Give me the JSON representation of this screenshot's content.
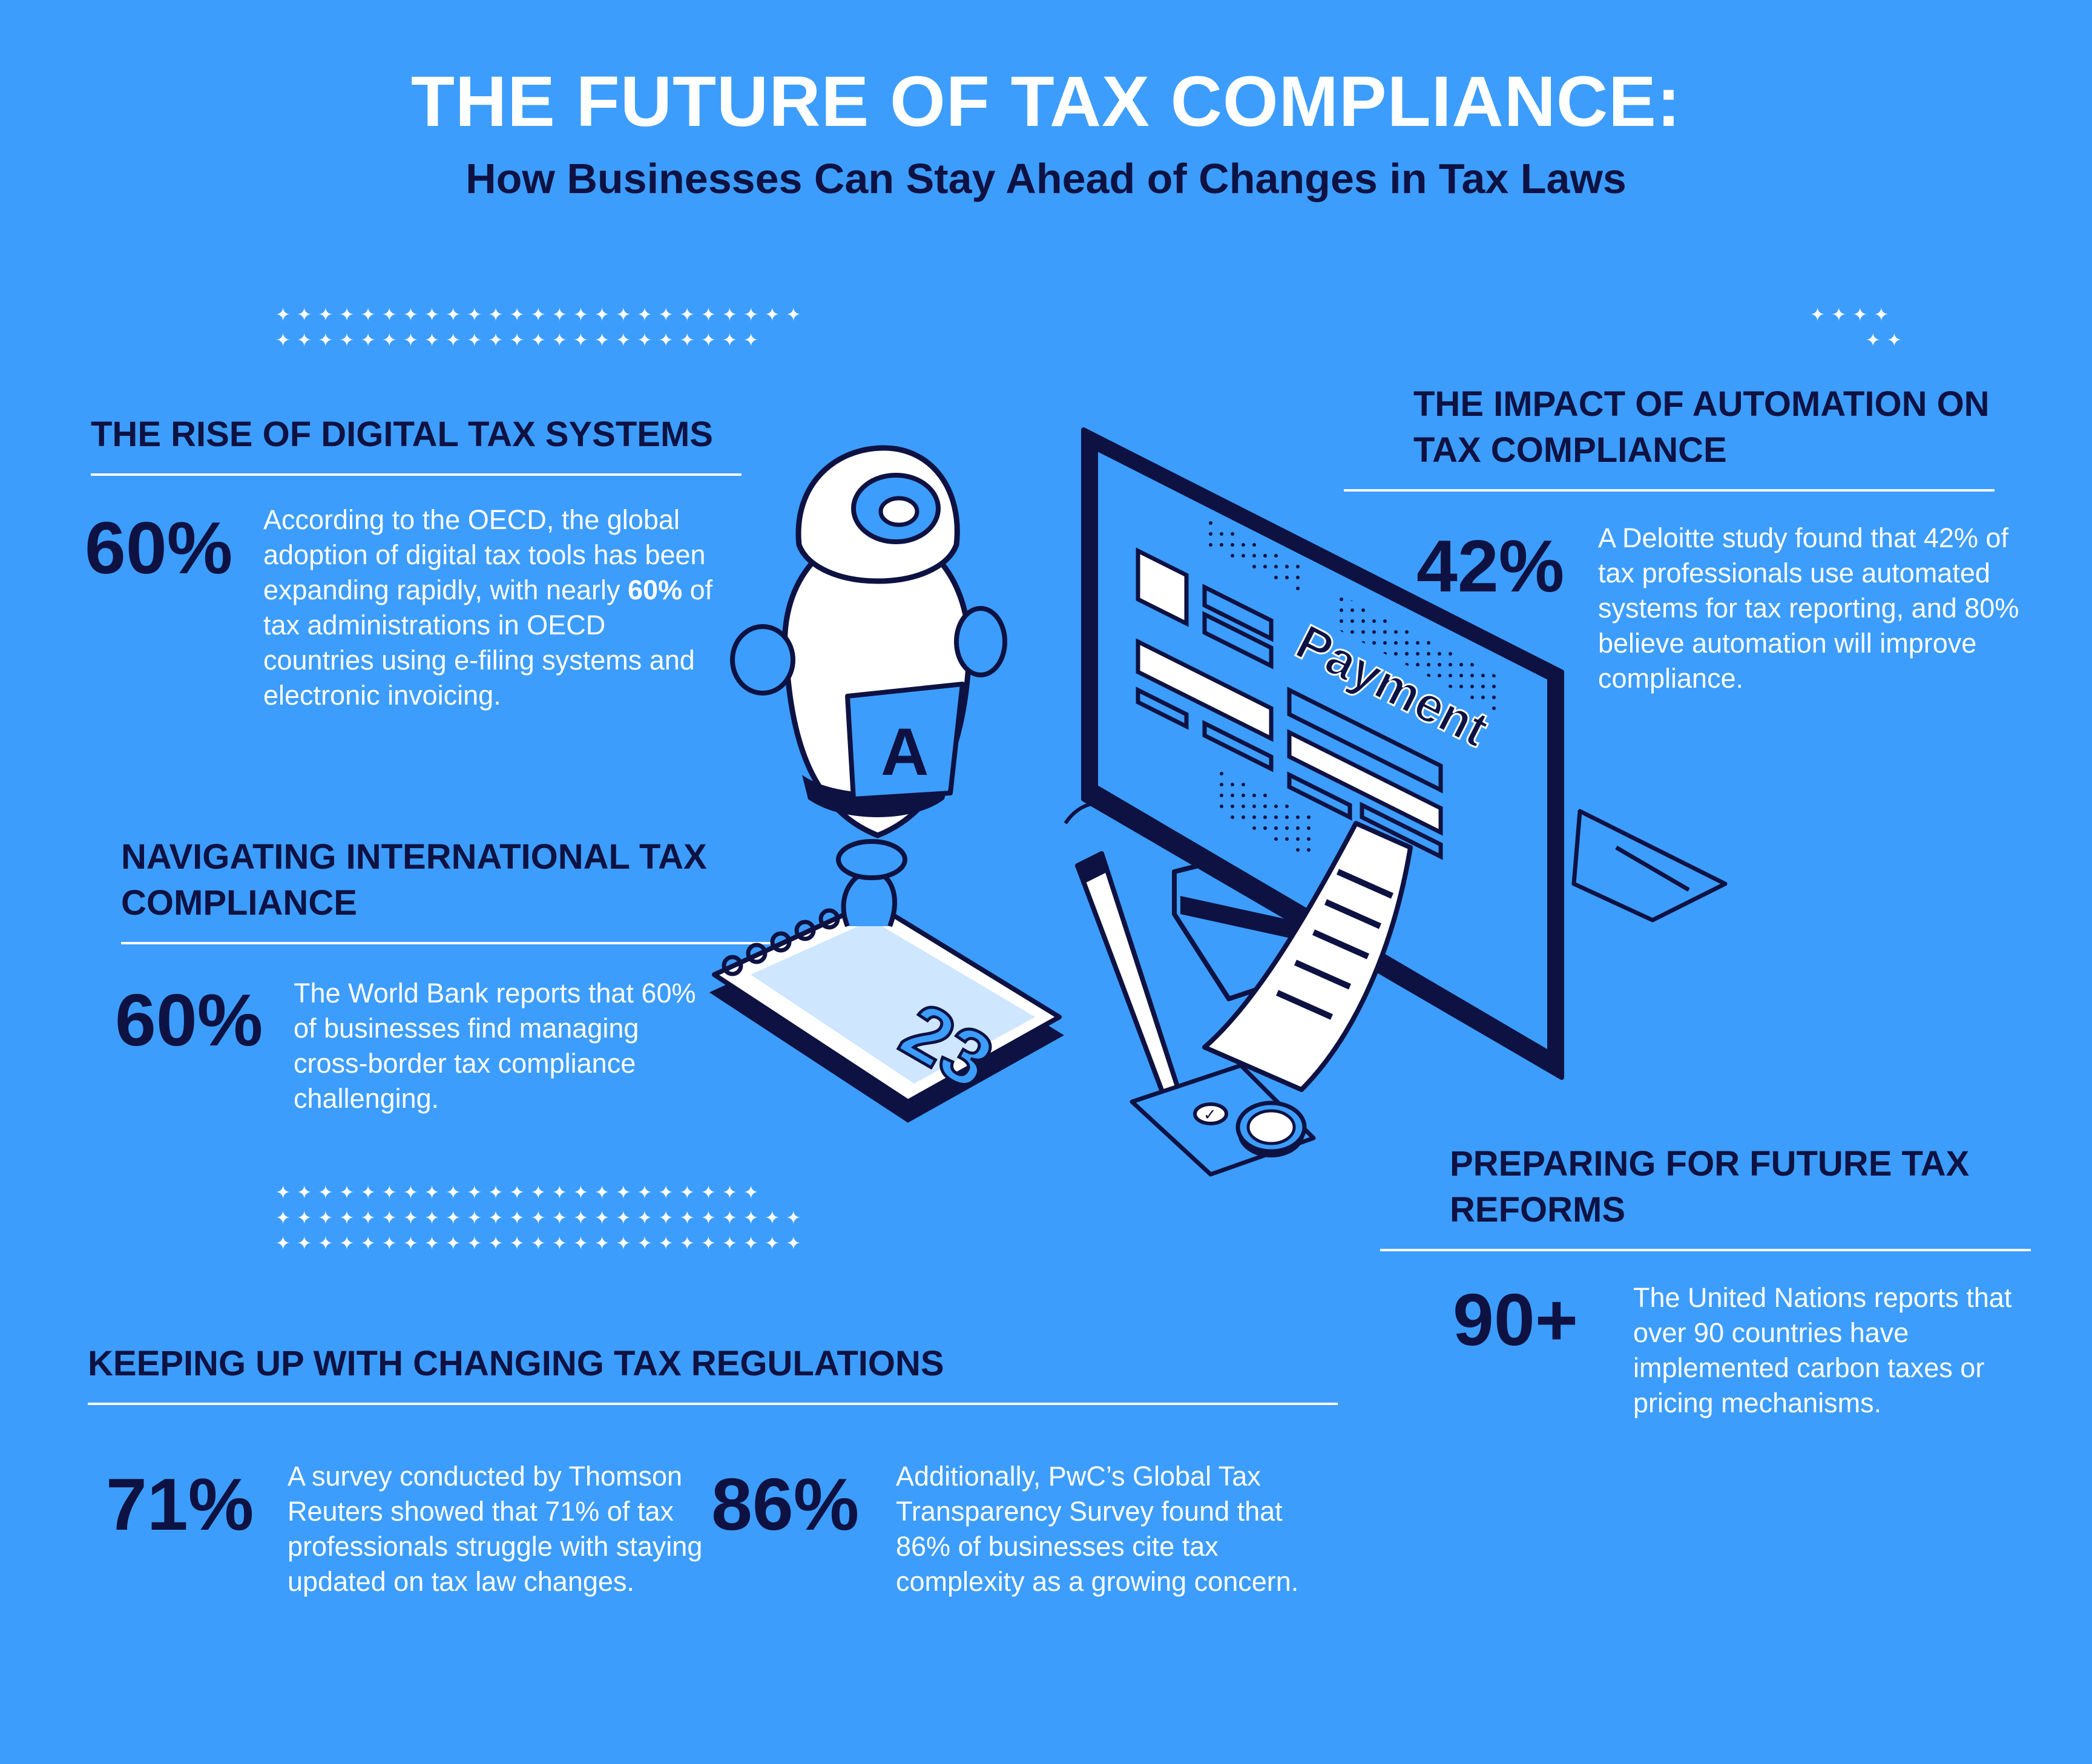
{
  "header": {
    "title": "THE FUTURE OF TAX COMPLIANCE:",
    "subtitle": "How Businesses Can Stay Ahead of Changes in Tax Laws"
  },
  "sections": {
    "digital": {
      "heading": "THE RISE OF DIGITAL TAX SYSTEMS",
      "stat": "60%",
      "text_before": "According to the OECD, the global adoption of digital tax tools has been expanding rapidly, with nearly ",
      "text_bold": "60%",
      "text_after": " of tax administrations in OECD countries using e-filing systems and electronic invoicing."
    },
    "international": {
      "heading": "NAVIGATING INTERNATIONAL TAX COMPLIANCE",
      "stat": "60%",
      "text": "The World Bank reports that 60% of businesses find managing cross-border tax compliance challenging."
    },
    "regulations": {
      "heading": "KEEPING UP WITH CHANGING TAX REGULATIONS",
      "stat_1": "71%",
      "text_1": "A survey conducted by Thomson Reuters showed that 71% of tax professionals struggle with staying updated on tax law changes.",
      "stat_2": "86%",
      "text_2": "Additionally, PwC’s Global Tax Transparency Survey found that 86% of businesses cite tax complexity as a growing concern."
    },
    "automation": {
      "heading": "THE IMPACT OF AUTOMATION ON TAX COMPLIANCE",
      "stat": "42%",
      "text": "A Deloitte study found that 42% of tax professionals use automated systems for tax reporting, and 80% believe automation will improve compliance."
    },
    "reforms": {
      "heading": "PREPARING FOR FUTURE TAX REFORMS",
      "stat": "90+",
      "text": "The United Nations reports that over 90 countries have implemented carbon taxes or pricing mechanisms."
    }
  },
  "illustration": {
    "screen_label": "Payment",
    "robot_badge": "A",
    "calendar_day": "23"
  },
  "colors": {
    "background": "#3c9dfd",
    "navy": "#0e1242",
    "white": "#ffffff"
  }
}
